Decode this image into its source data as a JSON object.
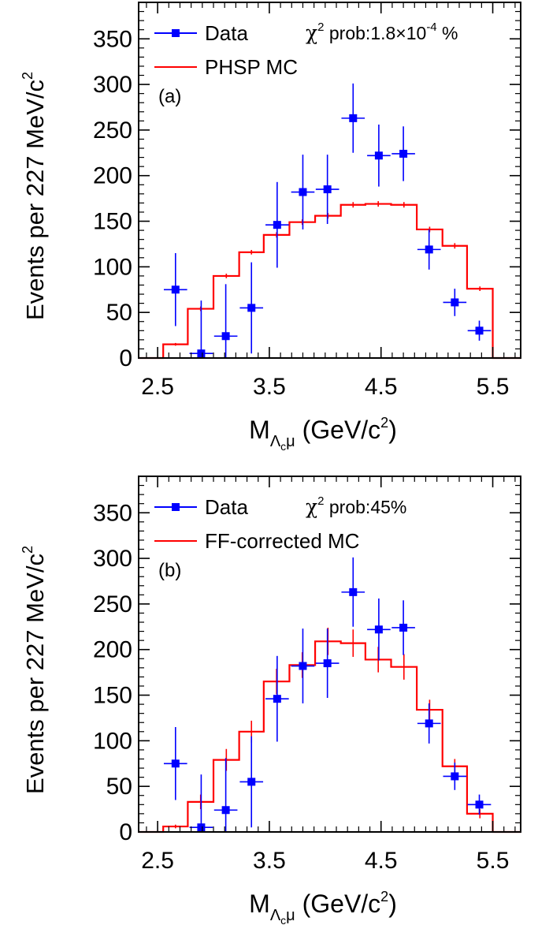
{
  "chart_data": [
    {
      "type": "line",
      "panel_label": "(a)",
      "stat_text": {
        "chi": "χ",
        "sup": "2",
        "text": " prob:1.8×10",
        "exp": "-4",
        "suffix": " %"
      },
      "xlabel": {
        "main": "M",
        "sub": "Λ",
        "subsub": "c",
        "sub2": "μ",
        "unit": " (GeV/c",
        "unit_sup": "2",
        "unit_end": ")"
      },
      "ylabel": {
        "text": "Events per 227 MeV/c",
        "sup": "2"
      },
      "xlim": [
        2.33,
        5.75
      ],
      "ylim": [
        0,
        390
      ],
      "x_ticks": [
        "2.5",
        "3.5",
        "4.5",
        "5.5"
      ],
      "y_ticks": [
        "0",
        "50",
        "100",
        "150",
        "200",
        "250",
        "300",
        "350"
      ],
      "legend": [
        {
          "name": "Data",
          "style": "marker"
        },
        {
          "name": "PHSP MC",
          "style": "line"
        }
      ],
      "colors": {
        "data": "#0000ff",
        "mc": "#ff0000"
      },
      "series": [
        {
          "name": "Data",
          "points": [
            {
              "x": 2.66,
              "y": 75,
              "err": 40
            },
            {
              "x": 2.89,
              "y": 5,
              "err": 58
            },
            {
              "x": 3.11,
              "y": 24,
              "err": 57
            },
            {
              "x": 3.34,
              "y": 55,
              "err": 50
            },
            {
              "x": 3.57,
              "y": 146,
              "err": 47
            },
            {
              "x": 3.8,
              "y": 182,
              "err": 41
            },
            {
              "x": 4.02,
              "y": 185,
              "err": 38
            },
            {
              "x": 4.25,
              "y": 263,
              "err": 38
            },
            {
              "x": 4.48,
              "y": 222,
              "err": 34
            },
            {
              "x": 4.7,
              "y": 224,
              "err": 30
            },
            {
              "x": 4.93,
              "y": 119,
              "err": 22
            },
            {
              "x": 5.16,
              "y": 61,
              "err": 15
            },
            {
              "x": 5.38,
              "y": 30,
              "err": 11
            }
          ]
        },
        {
          "name": "PHSP MC",
          "edges": [
            2.33,
            2.55,
            2.77,
            3.0,
            3.23,
            3.45,
            3.68,
            3.91,
            4.14,
            4.36,
            4.59,
            4.82,
            5.05,
            5.27,
            5.5,
            5.75
          ],
          "values": [
            0,
            15,
            54,
            90,
            116,
            135,
            149,
            156,
            168,
            169,
            168,
            141,
            123,
            76,
            0
          ],
          "err": [
            0,
            1.5,
            2.5,
            2.5,
            2.5,
            3,
            3,
            3,
            3,
            3,
            3,
            3,
            3,
            2.5,
            0
          ]
        }
      ]
    },
    {
      "type": "line",
      "panel_label": "(b)",
      "stat_text": {
        "chi": "χ",
        "sup": "2",
        "text": " prob:45%",
        "exp": "",
        "suffix": ""
      },
      "xlabel": {
        "main": "M",
        "sub": "Λ",
        "subsub": "c",
        "sub2": "μ",
        "unit": " (GeV/c",
        "unit_sup": "2",
        "unit_end": ")"
      },
      "ylabel": {
        "text": "Events per 227 MeV/c",
        "sup": "2"
      },
      "xlim": [
        2.33,
        5.75
      ],
      "ylim": [
        0,
        390
      ],
      "x_ticks": [
        "2.5",
        "3.5",
        "4.5",
        "5.5"
      ],
      "y_ticks": [
        "0",
        "50",
        "100",
        "150",
        "200",
        "250",
        "300",
        "350"
      ],
      "legend": [
        {
          "name": "Data",
          "style": "marker"
        },
        {
          "name": "FF-corrected MC",
          "style": "line"
        }
      ],
      "colors": {
        "data": "#0000ff",
        "mc": "#ff0000"
      },
      "series": [
        {
          "name": "Data",
          "points": [
            {
              "x": 2.66,
              "y": 75,
              "err": 40
            },
            {
              "x": 2.89,
              "y": 5,
              "err": 58
            },
            {
              "x": 3.11,
              "y": 24,
              "err": 57
            },
            {
              "x": 3.34,
              "y": 55,
              "err": 50
            },
            {
              "x": 3.57,
              "y": 146,
              "err": 47
            },
            {
              "x": 3.8,
              "y": 182,
              "err": 41
            },
            {
              "x": 4.02,
              "y": 185,
              "err": 38
            },
            {
              "x": 4.25,
              "y": 263,
              "err": 38
            },
            {
              "x": 4.48,
              "y": 222,
              "err": 34
            },
            {
              "x": 4.7,
              "y": 224,
              "err": 30
            },
            {
              "x": 4.93,
              "y": 119,
              "err": 22
            },
            {
              "x": 5.16,
              "y": 61,
              "err": 15
            },
            {
              "x": 5.38,
              "y": 30,
              "err": 11
            }
          ]
        },
        {
          "name": "FF-corrected MC",
          "edges": [
            2.33,
            2.55,
            2.77,
            3.0,
            3.23,
            3.45,
            3.68,
            3.91,
            4.14,
            4.36,
            4.59,
            4.82,
            5.05,
            5.27,
            5.5,
            5.75
          ],
          "values": [
            0,
            6,
            33,
            79,
            110,
            165,
            183,
            209,
            207,
            189,
            181,
            134,
            72,
            20,
            0
          ],
          "err": [
            0,
            2,
            8,
            12,
            12,
            14,
            14,
            15,
            15,
            14,
            14,
            11,
            8,
            5,
            0
          ]
        }
      ]
    }
  ]
}
